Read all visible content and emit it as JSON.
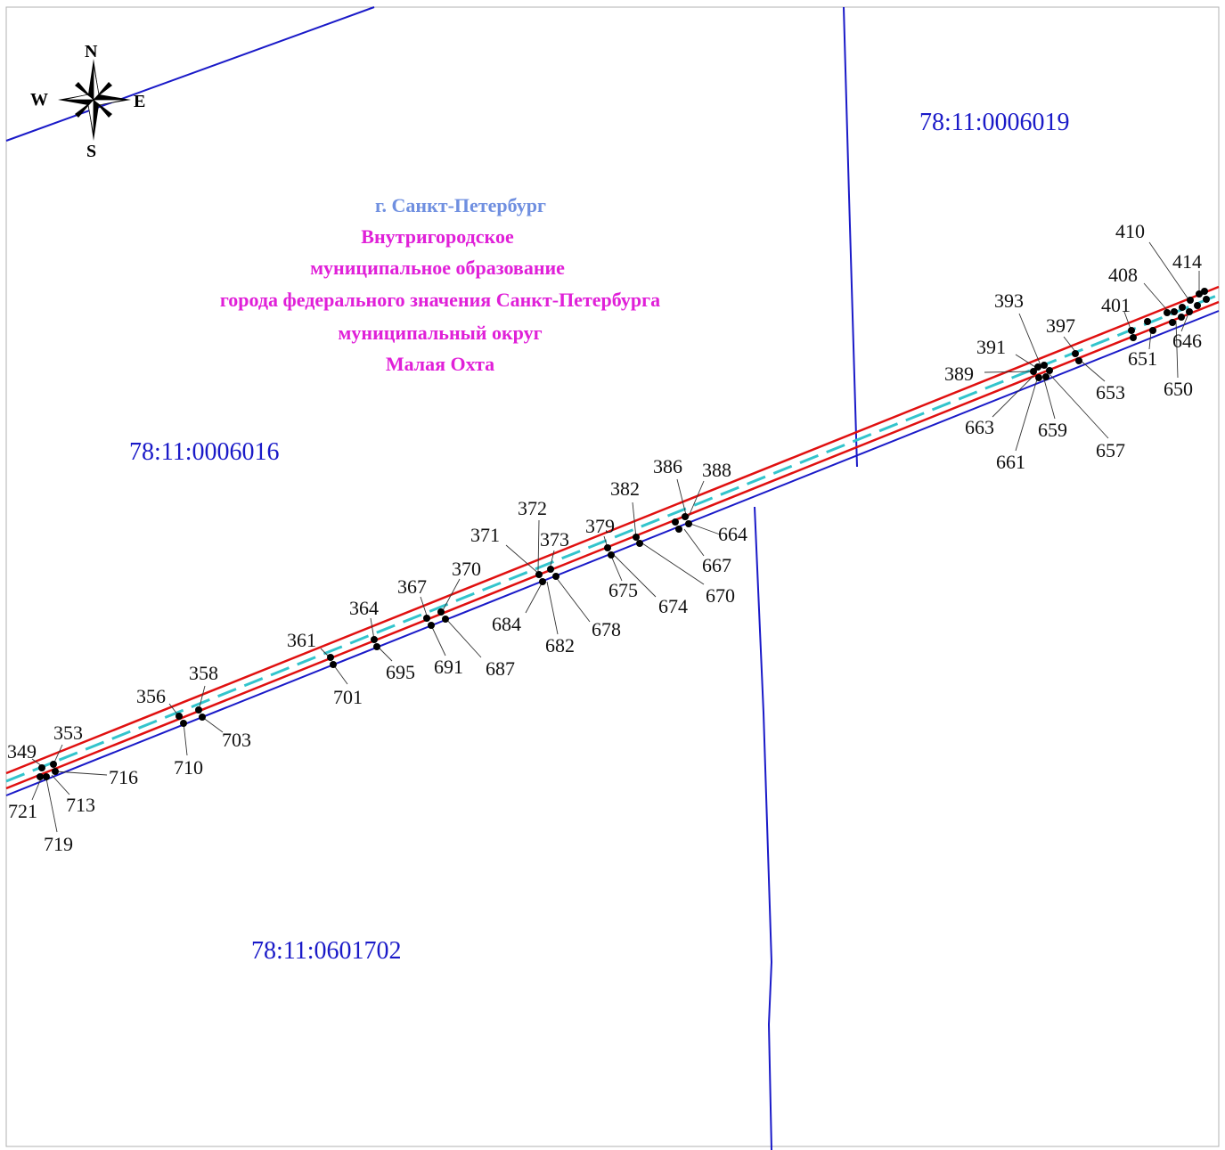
{
  "compass": {
    "north": "N",
    "south": "S",
    "west": "W",
    "east": "E",
    "icon": "compass-rose-icon"
  },
  "municipality": {
    "city": "г. Санкт-Петербург",
    "line1": "Внутригородское",
    "line2": "муниципальное образование",
    "line3": "города федерального значения  Санкт-Петербурга",
    "line4": "муниципальный округ",
    "line5": "Малая Охта"
  },
  "parcels": {
    "p6019": "78:11:0006019",
    "p6016": "78:11:0006016",
    "p601702": "78:11:0601702"
  },
  "points": {
    "349": "349",
    "353": "353",
    "356": "356",
    "358": "358",
    "361": "361",
    "364": "364",
    "367": "367",
    "370": "370",
    "371": "371",
    "372": "372",
    "373": "373",
    "379": "379",
    "382": "382",
    "386": "386",
    "388": "388",
    "389": "389",
    "391": "391",
    "393": "393",
    "397": "397",
    "401": "401",
    "408": "408",
    "410": "410",
    "414": "414",
    "646": "646",
    "650": "650",
    "651": "651",
    "653": "653",
    "657": "657",
    "659": "659",
    "661": "661",
    "663": "663",
    "664": "664",
    "667": "667",
    "670": "670",
    "674": "674",
    "675": "675",
    "678": "678",
    "682": "682",
    "684": "684",
    "687": "687",
    "691": "691",
    "695": "695",
    "701": "701",
    "703": "703",
    "710": "710",
    "713": "713",
    "716": "716",
    "719": "719",
    "721": "721"
  },
  "colors": {
    "parcel_boundary": "#1a1ac8",
    "easement_boundary": "#e01010",
    "axis_line": "#33c4cc",
    "city_text": "#6f8fe0",
    "municipality_text": "#e020d8",
    "parcel_text": "#1a1ac8",
    "frame": "#b0b0b0"
  }
}
